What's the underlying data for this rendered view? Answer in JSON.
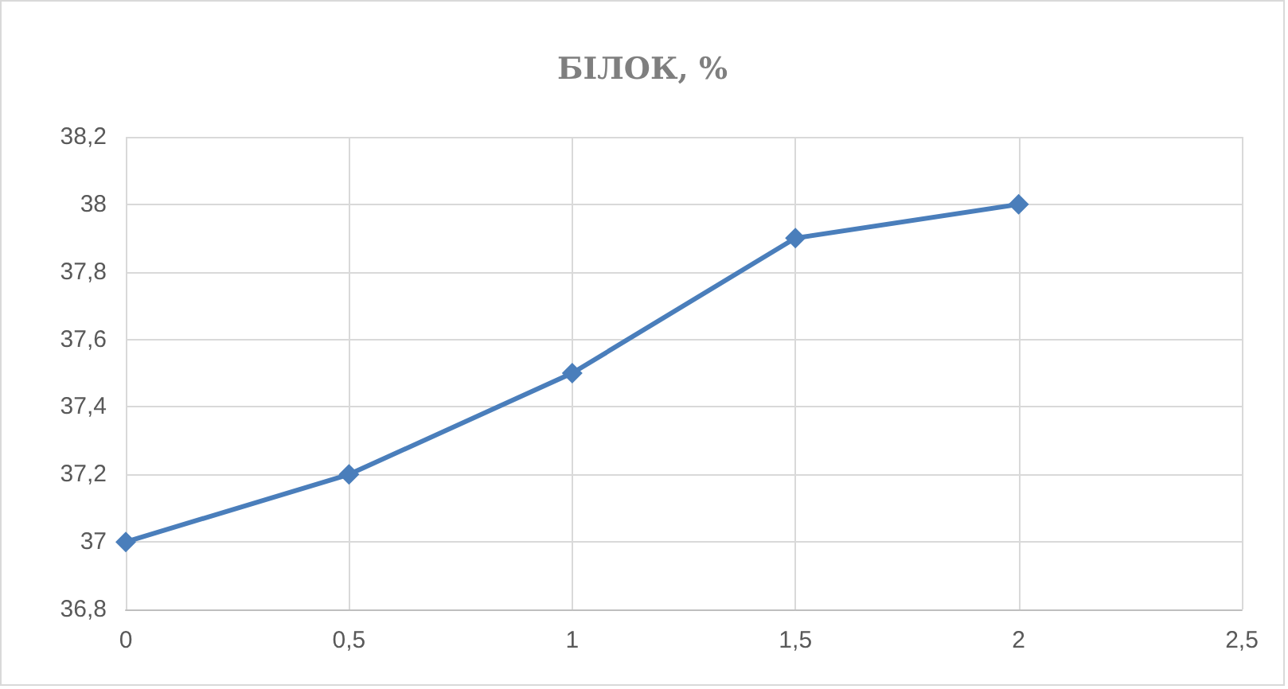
{
  "chart_data": {
    "type": "line",
    "title": "БІЛОК, %",
    "x": [
      0,
      0.5,
      1,
      1.5,
      2
    ],
    "series": [
      {
        "color": "#4a7ebb",
        "values": [
          37,
          37.2,
          37.5,
          37.9,
          38
        ]
      }
    ],
    "xlim": [
      0,
      2.5
    ],
    "xticks": [
      0,
      {
        "value": 0.5,
        "label": "0,5"
      },
      1,
      {
        "value": 1.5,
        "label": "1,5"
      },
      2,
      {
        "value": 2.5,
        "label": "2,5"
      }
    ],
    "ylim": [
      36.8,
      38.2
    ],
    "yticks": [
      {
        "value": 36.8,
        "label": "36,8"
      },
      37,
      {
        "value": 37.2,
        "label": "37,2"
      },
      {
        "value": 37.4,
        "label": "37,4"
      },
      {
        "value": 37.6,
        "label": "37,6"
      },
      {
        "value": 37.8,
        "label": "37,8"
      },
      38,
      {
        "value": 38.2,
        "label": "38,2"
      }
    ],
    "grid": true,
    "marker": "diamond",
    "line_style": "solid"
  }
}
